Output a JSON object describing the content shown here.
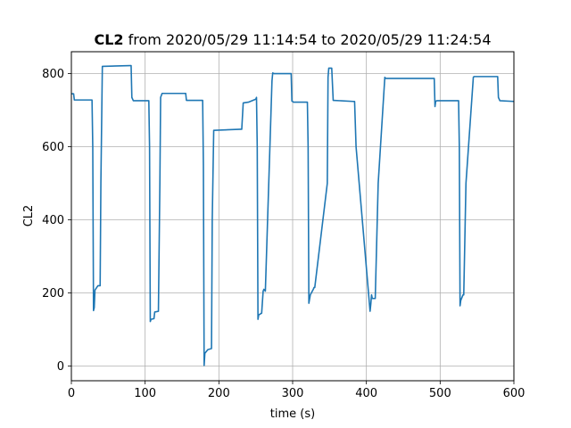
{
  "chart_data": {
    "type": "line",
    "title_bold": "CL2",
    "title_rest": " from 2020/05/29 11:14:54 to 2020/05/29 11:24:54",
    "xlabel": "time (s)",
    "ylabel": "CL2",
    "xlim": [
      0,
      600
    ],
    "ylim": [
      -40,
      860
    ],
    "xticks": [
      0,
      100,
      200,
      300,
      400,
      500,
      600
    ],
    "yticks": [
      0,
      200,
      400,
      600,
      800
    ],
    "grid": true,
    "line_color": "#1f77b4",
    "series": [
      {
        "x": [
          0,
          3,
          4,
          28,
          29,
          30,
          31,
          32,
          36,
          39,
          40,
          42,
          80,
          81,
          82,
          84,
          105,
          106,
          107,
          108,
          112,
          113,
          118,
          120,
          121,
          123,
          155,
          156,
          157,
          178,
          179,
          180,
          181,
          185,
          190,
          191,
          193,
          230,
          231,
          233,
          240,
          250,
          251,
          252,
          253,
          254,
          258,
          260,
          261,
          263,
          272,
          273,
          275,
          298,
          299,
          300,
          301,
          315,
          320,
          321,
          322,
          324,
          328,
          329,
          330,
          347,
          348,
          349,
          352,
          353,
          355,
          382,
          383,
          384,
          386,
          405,
          406,
          407,
          408,
          411,
          412,
          416,
          425,
          426,
          428,
          492,
          493,
          494,
          496,
          508,
          510,
          525,
          526,
          527,
          528,
          531,
          532,
          535,
          545,
          546,
          548,
          578,
          579,
          581,
          600
        ],
        "y": [
          745,
          745,
          728,
          728,
          600,
          152,
          160,
          208,
          220,
          220,
          500,
          820,
          822,
          822,
          735,
          726,
          726,
          600,
          122,
          128,
          130,
          148,
          150,
          500,
          735,
          746,
          746,
          727,
          727,
          727,
          550,
          2,
          35,
          45,
          48,
          400,
          645,
          648,
          648,
          720,
          722,
          730,
          735,
          600,
          128,
          140,
          145,
          205,
          210,
          205,
          780,
          802,
          800,
          800,
          725,
          724,
          722,
          722,
          722,
          600,
          172,
          195,
          210,
          215,
          215,
          500,
          790,
          815,
          815,
          815,
          727,
          724,
          724,
          724,
          600,
          150,
          170,
          195,
          185,
          185,
          185,
          500,
          790,
          787,
          787,
          787,
          710,
          725,
          726,
          726,
          726,
          726,
          600,
          165,
          180,
          195,
          195,
          500,
          790,
          792,
          792,
          792,
          735,
          726,
          724
        ]
      }
    ]
  }
}
